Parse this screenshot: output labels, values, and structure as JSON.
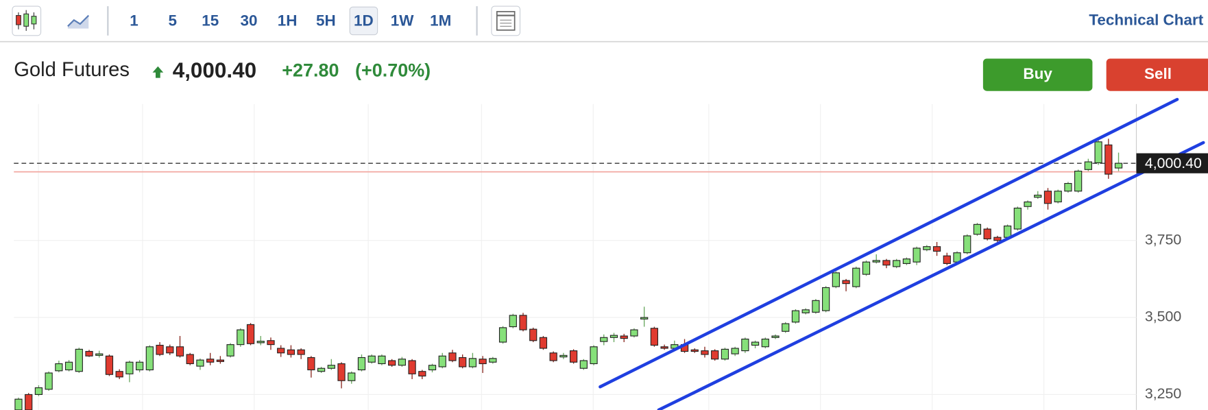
{
  "toolbar": {
    "intervals": [
      "1",
      "5",
      "15",
      "30",
      "1H",
      "5H",
      "1D",
      "1W",
      "1M"
    ],
    "active": "1D",
    "title": "Technical Chart"
  },
  "header": {
    "name": "Gold Futures",
    "price": "4,000.40",
    "change": "+27.80",
    "change_pct": "(+0.70%)"
  },
  "buttons": [
    "Buy",
    "Sell"
  ],
  "chart_data": {
    "type": "candlestick",
    "up_color": "#86e07a",
    "down_color": "#e03b30",
    "trendline_color": "#1f3fe0",
    "ylim": [
      3200,
      4192.5
    ],
    "yticks": [
      {
        "value": 3250,
        "label": "3,250"
      },
      {
        "value": 3500,
        "label": "3,500"
      },
      {
        "value": 3750,
        "label": "3,750"
      }
    ],
    "last": 4000.4,
    "previous_close": 3972.6,
    "ohlc": [
      [
        3200,
        3240,
        3195,
        3235
      ],
      [
        3250,
        3255,
        3195,
        3200
      ],
      [
        3250,
        3280,
        3245,
        3272
      ],
      [
        3267,
        3325,
        3262,
        3320
      ],
      [
        3327,
        3360,
        3322,
        3350
      ],
      [
        3330,
        3362,
        3325,
        3355
      ],
      [
        3325,
        3402,
        3320,
        3397
      ],
      [
        3390,
        3395,
        3372,
        3375
      ],
      [
        3377,
        3392,
        3370,
        3382
      ],
      [
        3375,
        3380,
        3310,
        3315
      ],
      [
        3325,
        3332,
        3300,
        3307
      ],
      [
        3317,
        3360,
        3290,
        3355
      ],
      [
        3330,
        3362,
        3322,
        3355
      ],
      [
        3330,
        3410,
        3325,
        3405
      ],
      [
        3410,
        3420,
        3375,
        3380
      ],
      [
        3405,
        3412,
        3378,
        3385
      ],
      [
        3405,
        3440,
        3370,
        3375
      ],
      [
        3380,
        3385,
        3345,
        3350
      ],
      [
        3342,
        3367,
        3330,
        3362
      ],
      [
        3365,
        3385,
        3345,
        3355
      ],
      [
        3362,
        3375,
        3350,
        3357
      ],
      [
        3375,
        3417,
        3370,
        3412
      ],
      [
        3412,
        3465,
        3405,
        3460
      ],
      [
        3477,
        3482,
        3410,
        3415
      ],
      [
        3418,
        3440,
        3410,
        3423
      ],
      [
        3425,
        3435,
        3395,
        3412
      ],
      [
        3400,
        3410,
        3372,
        3385
      ],
      [
        3395,
        3410,
        3370,
        3380
      ],
      [
        3395,
        3400,
        3365,
        3380
      ],
      [
        3370,
        3375,
        3305,
        3330
      ],
      [
        3325,
        3340,
        3320,
        3335
      ],
      [
        3335,
        3365,
        3330,
        3345
      ],
      [
        3350,
        3355,
        3270,
        3295
      ],
      [
        3295,
        3325,
        3285,
        3320
      ],
      [
        3330,
        3380,
        3325,
        3370
      ],
      [
        3355,
        3380,
        3350,
        3375
      ],
      [
        3350,
        3380,
        3345,
        3375
      ],
      [
        3360,
        3365,
        3340,
        3345
      ],
      [
        3345,
        3372,
        3340,
        3365
      ],
      [
        3360,
        3365,
        3300,
        3317
      ],
      [
        3325,
        3330,
        3300,
        3310
      ],
      [
        3330,
        3350,
        3322,
        3345
      ],
      [
        3340,
        3385,
        3335,
        3375
      ],
      [
        3385,
        3395,
        3355,
        3360
      ],
      [
        3370,
        3380,
        3335,
        3340
      ],
      [
        3340,
        3385,
        3335,
        3367
      ],
      [
        3365,
        3375,
        3320,
        3350
      ],
      [
        3355,
        3372,
        3350,
        3367
      ],
      [
        3420,
        3472,
        3415,
        3467
      ],
      [
        3470,
        3512,
        3465,
        3507
      ],
      [
        3507,
        3515,
        3455,
        3460
      ],
      [
        3462,
        3467,
        3420,
        3425
      ],
      [
        3435,
        3440,
        3395,
        3400
      ],
      [
        3385,
        3390,
        3355,
        3360
      ],
      [
        3372,
        3385,
        3365,
        3377
      ],
      [
        3392,
        3397,
        3350,
        3355
      ],
      [
        3335,
        3365,
        3330,
        3360
      ],
      [
        3350,
        3410,
        3345,
        3405
      ],
      [
        3422,
        3445,
        3410,
        3435
      ],
      [
        3435,
        3450,
        3420,
        3442
      ],
      [
        3440,
        3447,
        3420,
        3432
      ],
      [
        3440,
        3465,
        3435,
        3460
      ],
      [
        3495,
        3535,
        3470,
        3500
      ],
      [
        3465,
        3470,
        3405,
        3410
      ],
      [
        3405,
        3412,
        3395,
        3400
      ],
      [
        3400,
        3425,
        3395,
        3412
      ],
      [
        3412,
        3430,
        3385,
        3390
      ],
      [
        3395,
        3400,
        3385,
        3390
      ],
      [
        3392,
        3405,
        3370,
        3380
      ],
      [
        3392,
        3397,
        3360,
        3365
      ],
      [
        3365,
        3402,
        3360,
        3397
      ],
      [
        3382,
        3405,
        3375,
        3400
      ],
      [
        3392,
        3435,
        3385,
        3430
      ],
      [
        3410,
        3425,
        3400,
        3420
      ],
      [
        3405,
        3435,
        3400,
        3430
      ],
      [
        3435,
        3445,
        3430,
        3440
      ],
      [
        3455,
        3485,
        3450,
        3480
      ],
      [
        3485,
        3527,
        3480,
        3522
      ],
      [
        3515,
        3530,
        3510,
        3525
      ],
      [
        3517,
        3560,
        3512,
        3555
      ],
      [
        3522,
        3602,
        3517,
        3597
      ],
      [
        3600,
        3650,
        3595,
        3645
      ],
      [
        3620,
        3625,
        3585,
        3610
      ],
      [
        3600,
        3665,
        3595,
        3660
      ],
      [
        3640,
        3685,
        3635,
        3680
      ],
      [
        3680,
        3705,
        3675,
        3685
      ],
      [
        3685,
        3690,
        3660,
        3670
      ],
      [
        3665,
        3690,
        3660,
        3685
      ],
      [
        3675,
        3695,
        3670,
        3690
      ],
      [
        3680,
        3730,
        3670,
        3725
      ],
      [
        3720,
        3735,
        3715,
        3730
      ],
      [
        3730,
        3745,
        3700,
        3715
      ],
      [
        3700,
        3710,
        3670,
        3675
      ],
      [
        3680,
        3715,
        3675,
        3710
      ],
      [
        3710,
        3770,
        3705,
        3765
      ],
      [
        3770,
        3807,
        3765,
        3802
      ],
      [
        3787,
        3792,
        3750,
        3755
      ],
      [
        3760,
        3765,
        3735,
        3750
      ],
      [
        3760,
        3802,
        3755,
        3797
      ],
      [
        3787,
        3860,
        3782,
        3855
      ],
      [
        3860,
        3880,
        3850,
        3875
      ],
      [
        3890,
        3910,
        3885,
        3897
      ],
      [
        3910,
        3920,
        3850,
        3870
      ],
      [
        3875,
        3915,
        3870,
        3910
      ],
      [
        3910,
        3940,
        3905,
        3935
      ],
      [
        3910,
        3980,
        3905,
        3975
      ],
      [
        3980,
        4015,
        3975,
        4005
      ],
      [
        4002,
        4080,
        3995,
        4070
      ],
      [
        4060,
        4080,
        3950,
        3965
      ],
      [
        3985,
        4035,
        3975,
        4000.4
      ]
    ]
  }
}
